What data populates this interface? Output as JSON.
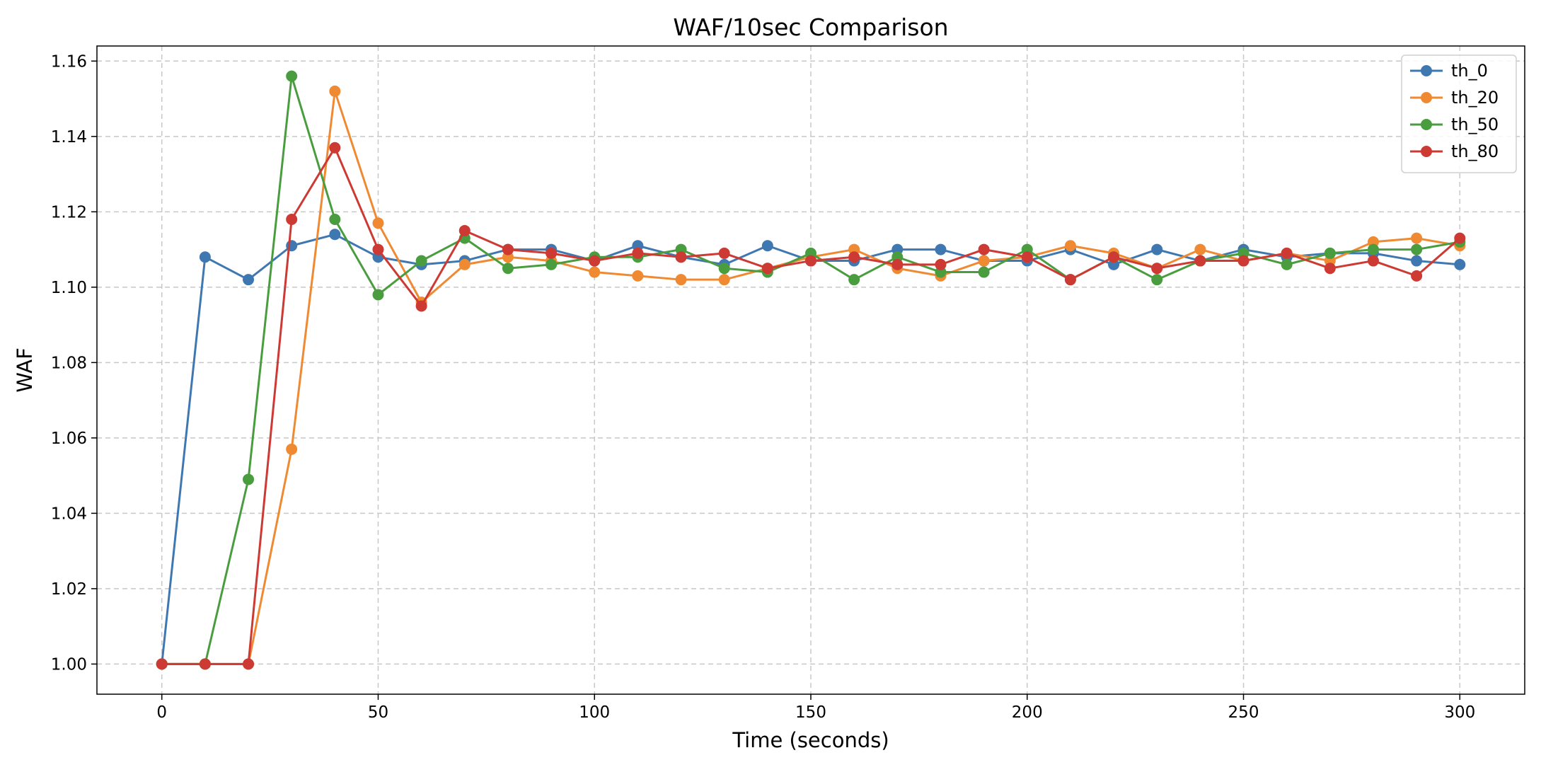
{
  "chart_data": {
    "type": "line",
    "title": "WAF/10sec Comparison",
    "xlabel": "Time (seconds)",
    "ylabel": "WAF",
    "xlim": [
      -15,
      315
    ],
    "ylim": [
      0.992,
      1.164
    ],
    "xticks": [
      0,
      50,
      100,
      150,
      200,
      250,
      300
    ],
    "yticks": [
      1.0,
      1.02,
      1.04,
      1.06,
      1.08,
      1.1,
      1.12,
      1.14,
      1.16
    ],
    "grid": true,
    "legend_position": "upper right",
    "x": [
      0,
      10,
      20,
      30,
      40,
      50,
      60,
      70,
      80,
      90,
      100,
      110,
      120,
      130,
      140,
      150,
      160,
      170,
      180,
      190,
      200,
      210,
      220,
      230,
      240,
      250,
      260,
      270,
      280,
      290,
      300
    ],
    "series": [
      {
        "name": "th_0",
        "color": "#3f78b1",
        "values": [
          1.0,
          1.108,
          1.102,
          1.111,
          1.114,
          1.108,
          1.106,
          1.107,
          1.11,
          1.11,
          1.107,
          1.111,
          1.108,
          1.106,
          1.111,
          1.107,
          1.107,
          1.11,
          1.11,
          1.107,
          1.107,
          1.11,
          1.106,
          1.11,
          1.107,
          1.11,
          1.108,
          1.109,
          1.109,
          1.107,
          1.106
        ]
      },
      {
        "name": "th_20",
        "color": "#ef8a33",
        "values": [
          1.0,
          1.0,
          1.0,
          1.057,
          1.152,
          1.117,
          1.096,
          1.106,
          1.108,
          1.107,
          1.104,
          1.103,
          1.102,
          1.102,
          1.105,
          1.108,
          1.11,
          1.105,
          1.103,
          1.107,
          1.108,
          1.111,
          1.109,
          1.105,
          1.11,
          1.107,
          1.109,
          1.107,
          1.112,
          1.113,
          1.111
        ]
      },
      {
        "name": "th_50",
        "color": "#4a9d3f",
        "values": [
          1.0,
          1.0,
          1.049,
          1.156,
          1.118,
          1.098,
          1.107,
          1.113,
          1.105,
          1.106,
          1.108,
          1.108,
          1.11,
          1.105,
          1.104,
          1.109,
          1.102,
          1.108,
          1.104,
          1.104,
          1.11,
          1.102,
          1.108,
          1.102,
          1.107,
          1.109,
          1.106,
          1.109,
          1.11,
          1.11,
          1.112
        ]
      },
      {
        "name": "th_80",
        "color": "#cc3a33",
        "values": [
          1.0,
          1.0,
          1.0,
          1.118,
          1.137,
          1.11,
          1.095,
          1.115,
          1.11,
          1.109,
          1.107,
          1.109,
          1.108,
          1.109,
          1.105,
          1.107,
          1.108,
          1.106,
          1.106,
          1.11,
          1.108,
          1.102,
          1.108,
          1.105,
          1.107,
          1.107,
          1.109,
          1.105,
          1.107,
          1.103,
          1.113
        ]
      }
    ]
  }
}
